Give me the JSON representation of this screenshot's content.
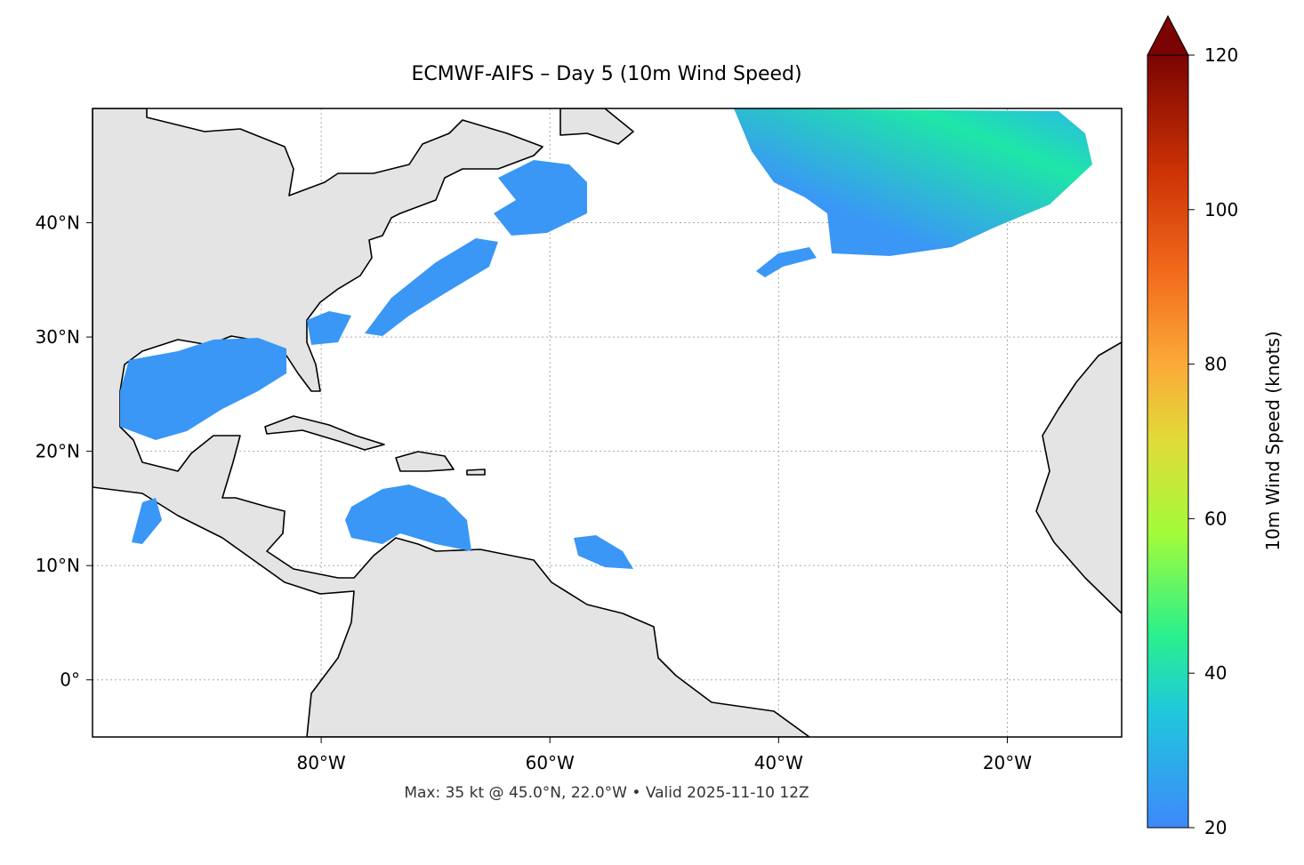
{
  "title": "ECMWF-AIFS – Day 5 (10m Wind Speed)",
  "footer": "Max: 35 kt @ 45.0°N, 22.0°W • Valid 2025-11-10 12Z",
  "map": {
    "lon_range": [
      -100,
      -10
    ],
    "lat_range": [
      -5,
      50
    ],
    "lon_ticks": [
      {
        "value": -80,
        "label": "80°W"
      },
      {
        "value": -60,
        "label": "60°W"
      },
      {
        "value": -40,
        "label": "40°W"
      },
      {
        "value": -20,
        "label": "20°W"
      }
    ],
    "lat_ticks": [
      {
        "value": 0,
        "label": "0°"
      },
      {
        "value": 10,
        "label": "10°N"
      },
      {
        "value": 20,
        "label": "20°N"
      },
      {
        "value": 30,
        "label": "30°N"
      },
      {
        "value": 40,
        "label": "40°N"
      }
    ]
  },
  "colorbar": {
    "label": "10m Wind Speed (knots)",
    "range": [
      20,
      120
    ],
    "ticks": [
      20,
      40,
      60,
      80,
      100,
      120
    ]
  }
}
